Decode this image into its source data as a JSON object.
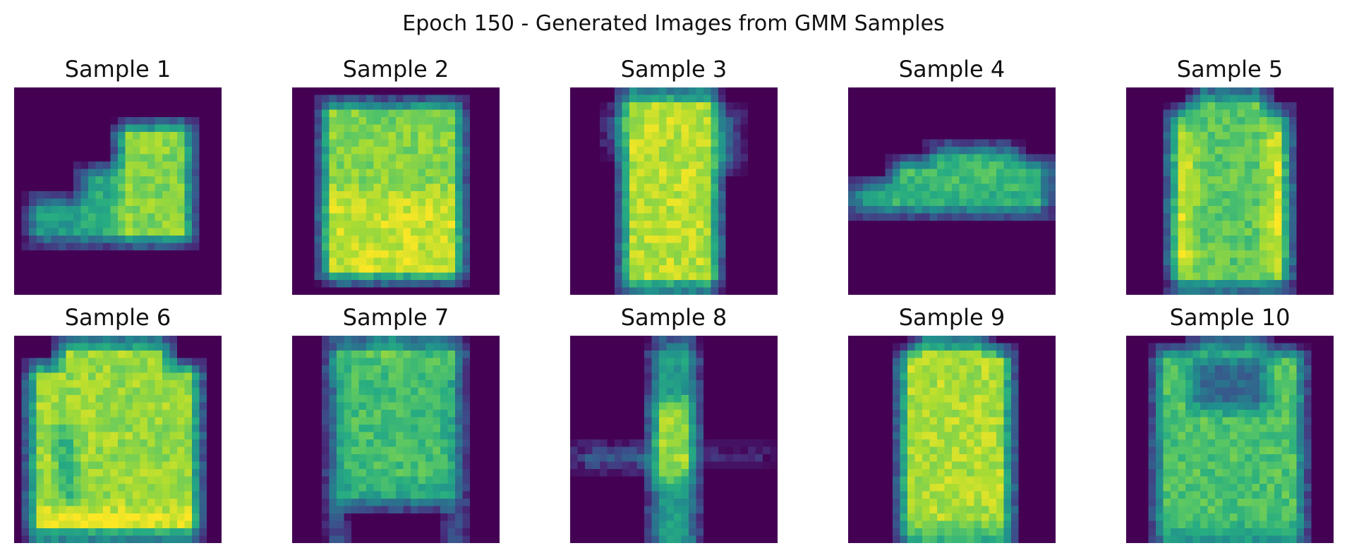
{
  "figure": {
    "title": "Epoch 150 - Generated Images from GMM Samples",
    "colormap": "viridis",
    "image_resolution": "28x28",
    "background_color": "#440154",
    "samples": [
      {
        "label": "Sample 1",
        "depicts": "ankle boot",
        "mean_intensity": 0.55
      },
      {
        "label": "Sample 2",
        "depicts": "pullover / shirt",
        "mean_intensity": 0.8
      },
      {
        "label": "Sample 3",
        "depicts": "dress",
        "mean_intensity": 0.85
      },
      {
        "label": "Sample 4",
        "depicts": "sneaker",
        "mean_intensity": 0.55
      },
      {
        "label": "Sample 5",
        "depicts": "pullover",
        "mean_intensity": 0.72
      },
      {
        "label": "Sample 6",
        "depicts": "pullover / coat",
        "mean_intensity": 0.8
      },
      {
        "label": "Sample 7",
        "depicts": "pullover",
        "mean_intensity": 0.65
      },
      {
        "label": "Sample 8",
        "depicts": "trouser (blurry)",
        "mean_intensity": 0.5
      },
      {
        "label": "Sample 9",
        "depicts": "dress / coat",
        "mean_intensity": 0.82
      },
      {
        "label": "Sample 10",
        "depicts": "shirt",
        "mean_intensity": 0.62
      }
    ]
  }
}
